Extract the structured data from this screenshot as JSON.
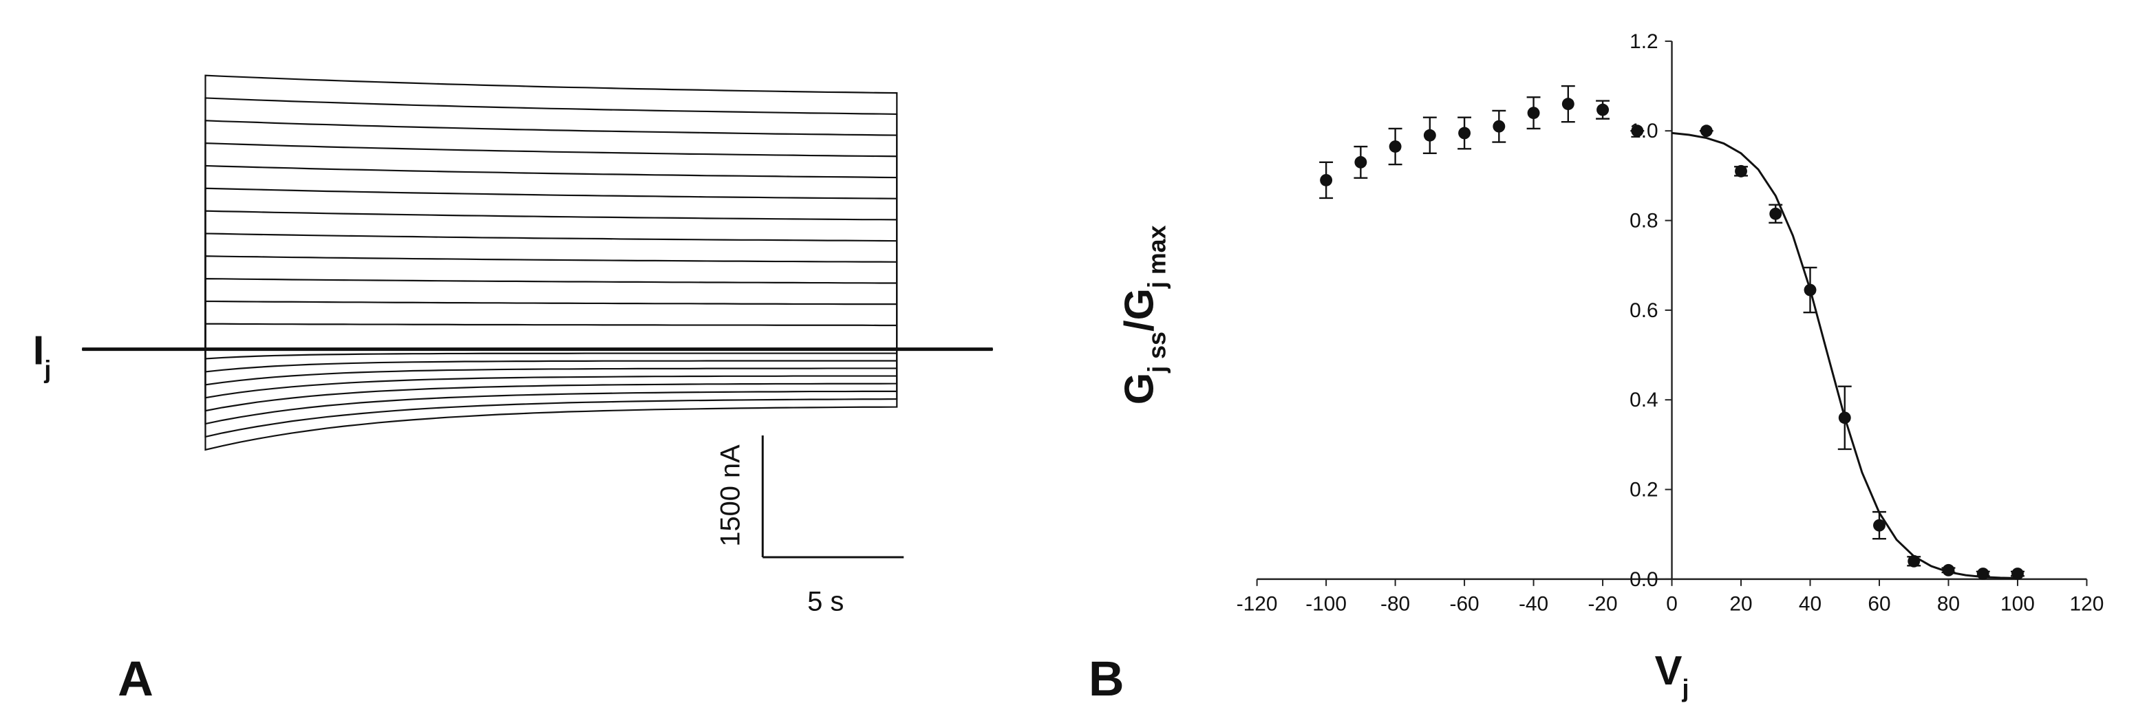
{
  "chart_data": [
    {
      "type": "traces",
      "panel_label": "A",
      "trace_label": "I",
      "trace_label_sub": "j",
      "scale_bar_y": "1500 nA",
      "scale_bar_x": "5 s"
    },
    {
      "type": "scatter",
      "panel_label": "B",
      "xlabel": "V",
      "xlabel_sub": "j",
      "ylabel_parts": [
        "G",
        "j ss",
        "/G",
        "j max"
      ],
      "color": "#111111",
      "x": [
        -100,
        -90,
        -80,
        -70,
        -60,
        -50,
        -40,
        -30,
        -20,
        -10,
        10,
        20,
        30,
        40,
        50,
        60,
        70,
        80,
        90,
        100
      ],
      "values": [
        0.89,
        0.93,
        0.965,
        0.99,
        0.995,
        1.01,
        1.04,
        1.06,
        1.047,
        1.0,
        1.0,
        0.91,
        0.815,
        0.645,
        0.36,
        0.12,
        0.04,
        0.02,
        0.012,
        0.012
      ],
      "errors": [
        0.04,
        0.035,
        0.04,
        0.04,
        0.035,
        0.035,
        0.035,
        0.04,
        0.02,
        0,
        0,
        0.01,
        0.02,
        0.05,
        0.07,
        0.03,
        0.01,
        0.005,
        0.005,
        0.005
      ],
      "curve": {
        "x": [
          0,
          5,
          10,
          15,
          20,
          25,
          30,
          35,
          40,
          45,
          50,
          55,
          60,
          65,
          70,
          75,
          80,
          85,
          90,
          95,
          100
        ],
        "values": [
          0.995,
          0.991,
          0.984,
          0.972,
          0.95,
          0.914,
          0.855,
          0.766,
          0.646,
          0.503,
          0.36,
          0.238,
          0.148,
          0.088,
          0.051,
          0.029,
          0.016,
          0.009,
          0.005,
          0.003,
          0.002
        ]
      },
      "xlim": [
        -120,
        120
      ],
      "ylim": [
        0,
        1.2
      ],
      "xticks": [
        -120,
        -100,
        -80,
        -60,
        -40,
        -20,
        0,
        20,
        40,
        60,
        80,
        100,
        120
      ],
      "yticks": [
        {
          "value": 0,
          "label": "0.0"
        },
        0.2,
        0.4,
        0.6,
        0.8,
        {
          "value": 1,
          "label": "1.0"
        },
        1.2
      ]
    }
  ]
}
